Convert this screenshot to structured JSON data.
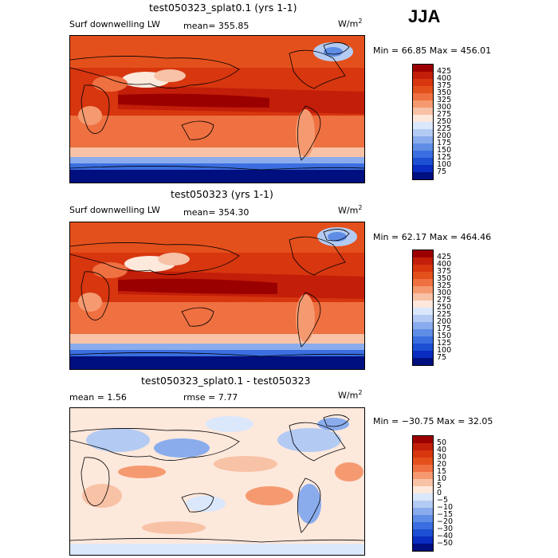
{
  "season": "JJA",
  "units_prefix": "W/m",
  "units_exp": "2",
  "panels": [
    {
      "title": "test050323_splat0.1 (yrs 1-1)",
      "label": "Surf downwelling LW",
      "mean_text": "mean= 355.85",
      "minmax_text": "Min =   66.85 Max = 456.01",
      "levels": [
        "425",
        "400",
        "375",
        "350",
        "325",
        "300",
        "275",
        "250",
        "225",
        "200",
        "175",
        "150",
        "125",
        "100",
        "75"
      ],
      "colors": [
        "#9b0000",
        "#c31e09",
        "#d7360f",
        "#e4501c",
        "#ef7041",
        "#f59a70",
        "#f8c2a6",
        "#fde8dc",
        "#dbe7fb",
        "#b3cbf3",
        "#8aaced",
        "#5f8de5",
        "#3b6ee0",
        "#1c4fd3",
        "#0a2cc0",
        "#000f7f"
      ]
    },
    {
      "title": "test050323 (yrs 1-1)",
      "label": "Surf downwelling LW",
      "mean_text": "mean= 354.30",
      "minmax_text": "Min =   62.17 Max = 464.46",
      "levels": [
        "425",
        "400",
        "375",
        "350",
        "325",
        "300",
        "275",
        "250",
        "225",
        "200",
        "175",
        "150",
        "125",
        "100",
        "75"
      ],
      "colors": [
        "#9b0000",
        "#c31e09",
        "#d7360f",
        "#e4501c",
        "#ef7041",
        "#f59a70",
        "#f8c2a6",
        "#fde8dc",
        "#dbe7fb",
        "#b3cbf3",
        "#8aaced",
        "#5f8de5",
        "#3b6ee0",
        "#1c4fd3",
        "#0a2cc0",
        "#000f7f"
      ]
    },
    {
      "title": "test050323_splat0.1 - test050323",
      "mean_text": "mean =    1.56",
      "rmse_text": "rmse =    7.77",
      "minmax_text": "Min = −30.75 Max =   32.05",
      "levels": [
        "50",
        "40",
        "30",
        "20",
        "15",
        "10",
        "5",
        "0",
        "−5",
        "−10",
        "−15",
        "−20",
        "−30",
        "−40",
        "−50"
      ],
      "colors": [
        "#9b0000",
        "#c31e09",
        "#d7360f",
        "#e4501c",
        "#ef7041",
        "#f59a70",
        "#f8c2a6",
        "#fde8dc",
        "#dbe7fb",
        "#b3cbf3",
        "#8aaced",
        "#5f8de5",
        "#3b6ee0",
        "#1c4fd3",
        "#0a2cc0",
        "#000f7f"
      ]
    }
  ],
  "chart_data": {
    "type": "heatmap",
    "season": "JJA",
    "variable": "Surf downwelling LW",
    "units": "W/m^2",
    "maps": [
      {
        "title": "test050323_splat0.1 (yrs 1-1)",
        "mean": 355.85,
        "min": 66.85,
        "max": 456.01,
        "contour_levels": [
          75,
          100,
          125,
          150,
          175,
          200,
          225,
          250,
          275,
          300,
          325,
          350,
          375,
          400,
          425
        ]
      },
      {
        "title": "test050323 (yrs 1-1)",
        "mean": 354.3,
        "min": 62.17,
        "max": 464.46,
        "contour_levels": [
          75,
          100,
          125,
          150,
          175,
          200,
          225,
          250,
          275,
          300,
          325,
          350,
          375,
          400,
          425
        ]
      },
      {
        "title": "test050323_splat0.1 - test050323",
        "mean": 1.56,
        "rmse": 7.77,
        "min": -30.75,
        "max": 32.05,
        "contour_levels": [
          -50,
          -40,
          -30,
          -20,
          -15,
          -10,
          -5,
          0,
          5,
          10,
          15,
          20,
          30,
          40,
          50
        ]
      }
    ]
  }
}
